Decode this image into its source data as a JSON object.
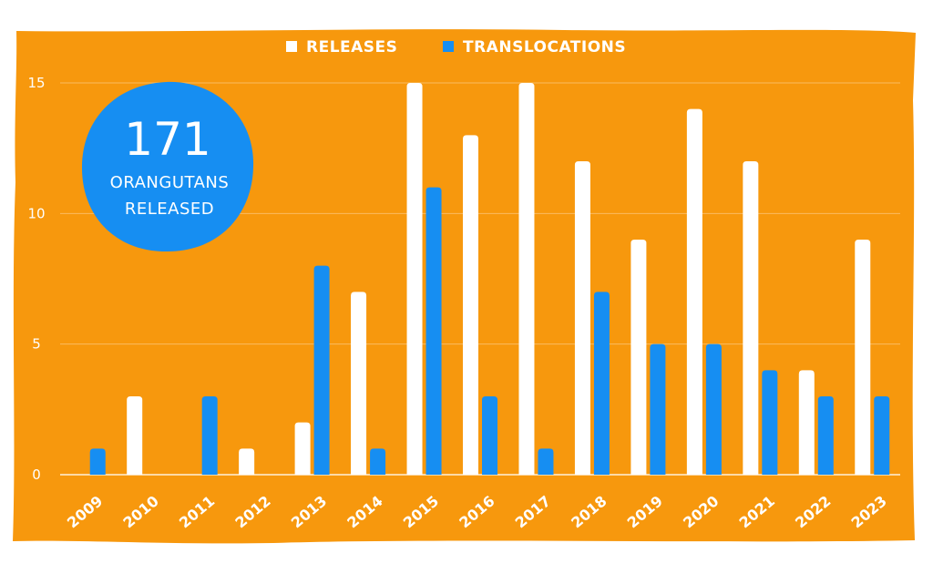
{
  "chart_data": {
    "type": "bar",
    "categories": [
      "2009",
      "2010",
      "2011",
      "2012",
      "2013",
      "2014",
      "2015",
      "2016",
      "2017",
      "2018",
      "2019",
      "2020",
      "2021",
      "2022",
      "2023"
    ],
    "series": [
      {
        "name": "RELEASES",
        "values": [
          0,
          3,
          0,
          1,
          2,
          7,
          15,
          13,
          15,
          12,
          9,
          14,
          12,
          4,
          9
        ]
      },
      {
        "name": "TRANSLOCATIONS",
        "values": [
          1,
          0,
          3,
          0,
          8,
          1,
          11,
          3,
          1,
          7,
          5,
          5,
          4,
          3,
          3
        ]
      }
    ],
    "y_ticks": [
      0,
      5,
      10,
      15
    ],
    "ylim": [
      0,
      15
    ],
    "grid": true,
    "legend_position": "top-center"
  },
  "badge": {
    "number": "171",
    "line1": "ORANGUTANS",
    "line2": "RELEASED"
  },
  "colors": {
    "background": "#F7980D",
    "releases": "#FFFFFF",
    "translocations": "#168EF2",
    "badge": "#168EF2"
  }
}
